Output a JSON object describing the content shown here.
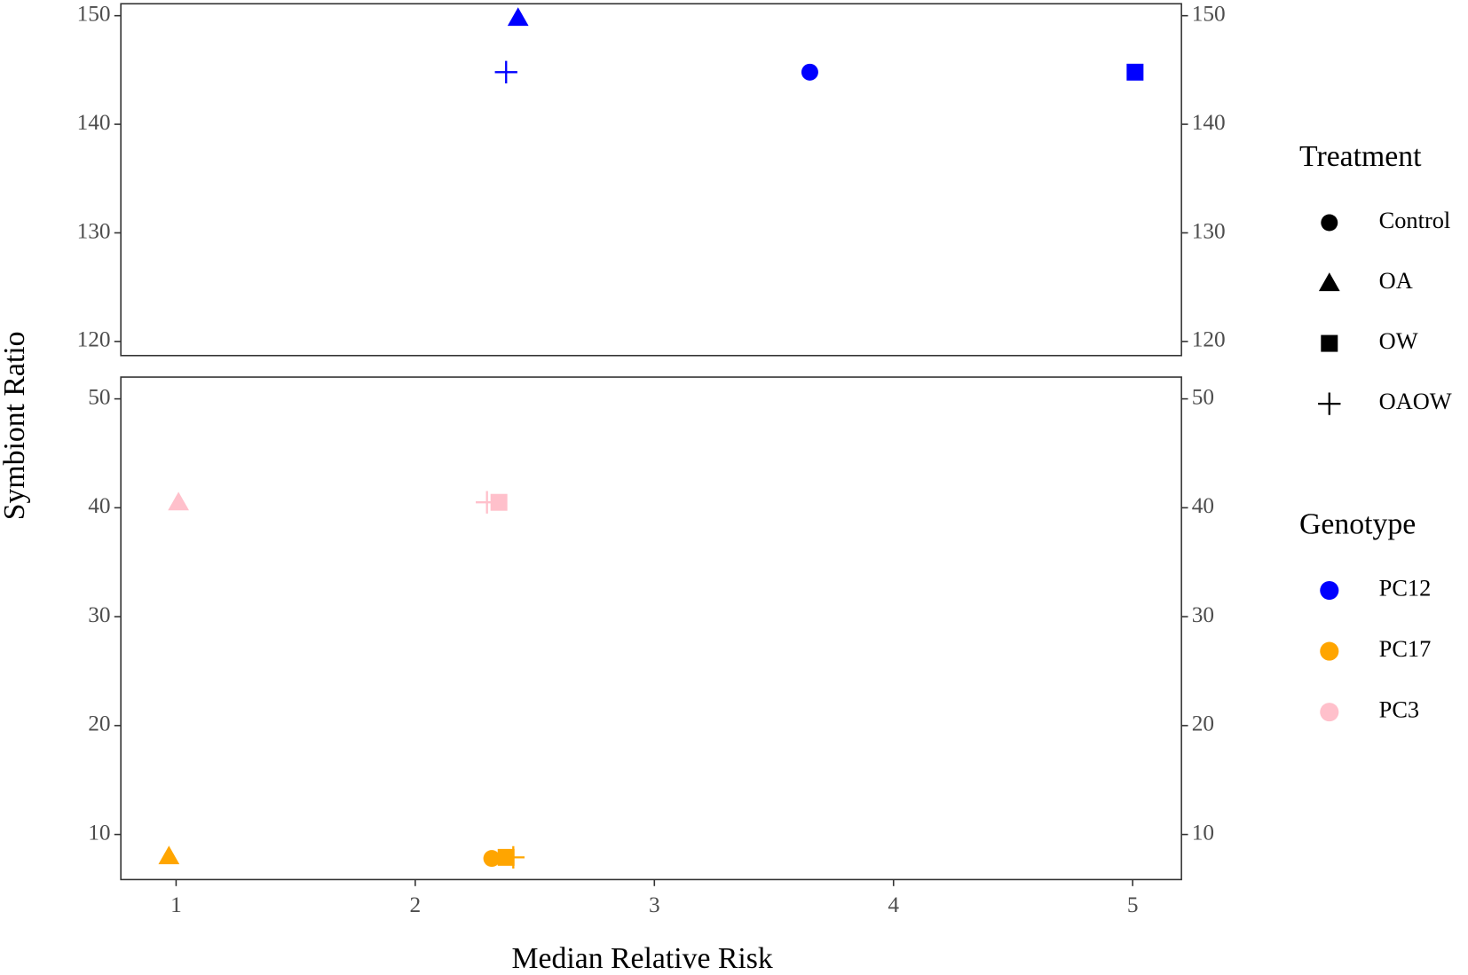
{
  "chart_data": {
    "type": "scatter",
    "x_label": "Median Relative Risk",
    "y_label": "Symbiont Ratio",
    "xlim": [
      0.769,
      5.204
    ],
    "xticks": [
      1,
      2,
      3,
      4,
      5
    ],
    "legend": {
      "treatment": {
        "title": "Treatment",
        "items": [
          {
            "name": "Control",
            "shape": "circle"
          },
          {
            "name": "OA",
            "shape": "triangle"
          },
          {
            "name": "OW",
            "shape": "square"
          },
          {
            "name": "OAOW",
            "shape": "plus"
          }
        ]
      },
      "genotype": {
        "title": "Genotype",
        "items": [
          {
            "name": "PC12",
            "color": "#0000ff"
          },
          {
            "name": "PC17",
            "color": "#ffa500"
          },
          {
            "name": "PC3",
            "color": "#ffc0cb"
          }
        ]
      }
    },
    "panels": [
      {
        "ylim": [
          118.7,
          151.1
        ],
        "yticks": [
          120,
          130,
          140,
          150
        ],
        "points": [
          {
            "x": 2.43,
            "y": 149.8,
            "treatment": "OA",
            "genotype": "PC12"
          },
          {
            "x": 2.38,
            "y": 144.8,
            "treatment": "OAOW",
            "genotype": "PC12"
          },
          {
            "x": 3.65,
            "y": 144.8,
            "treatment": "Control",
            "genotype": "PC12"
          },
          {
            "x": 5.01,
            "y": 144.8,
            "treatment": "OW",
            "genotype": "PC12"
          }
        ]
      },
      {
        "ylim": [
          5.86,
          52.0
        ],
        "yticks": [
          10,
          20,
          30,
          40,
          50
        ],
        "points": [
          {
            "x": 1.01,
            "y": 40.5,
            "treatment": "OA",
            "genotype": "PC3"
          },
          {
            "x": 2.3,
            "y": 40.5,
            "treatment": "OAOW",
            "genotype": "PC3"
          },
          {
            "x": 2.35,
            "y": 40.5,
            "treatment": "OW",
            "genotype": "PC3"
          },
          {
            "x": 0.97,
            "y": 8.0,
            "treatment": "OA",
            "genotype": "PC17"
          },
          {
            "x": 2.32,
            "y": 7.8,
            "treatment": "Control",
            "genotype": "PC17"
          },
          {
            "x": 2.38,
            "y": 7.9,
            "treatment": "OW",
            "genotype": "PC17"
          },
          {
            "x": 2.41,
            "y": 7.9,
            "treatment": "OAOW",
            "genotype": "PC17"
          }
        ]
      }
    ]
  }
}
